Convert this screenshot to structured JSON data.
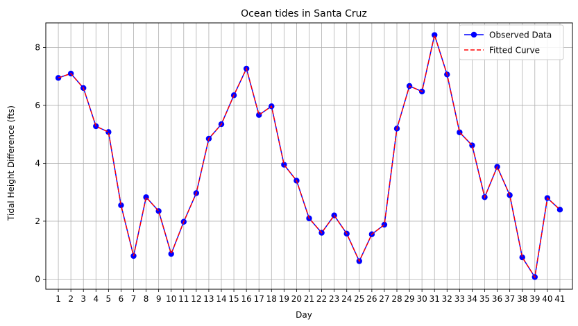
{
  "chart_data": {
    "type": "line",
    "title": "Ocean tides in Santa Cruz",
    "xlabel": "Day",
    "ylabel": "Tidal Height Difference (fts)",
    "x": [
      1,
      2,
      3,
      4,
      5,
      6,
      7,
      8,
      9,
      10,
      11,
      12,
      13,
      14,
      15,
      16,
      17,
      18,
      19,
      20,
      21,
      22,
      23,
      24,
      25,
      26,
      27,
      28,
      29,
      30,
      31,
      32,
      33,
      34,
      35,
      36,
      37,
      38,
      39,
      40,
      41
    ],
    "y_ticks": [
      0,
      2,
      4,
      6,
      8
    ],
    "xlim": [
      -0.0,
      42.0
    ],
    "ylim": [
      -0.35,
      8.85
    ],
    "grid": true,
    "legend_position": "top-right",
    "series": [
      {
        "name": "Observed Data",
        "color": "#0000ff",
        "style": "solid-with-markers",
        "values": [
          6.95,
          7.1,
          6.6,
          5.28,
          5.08,
          2.55,
          0.8,
          2.83,
          2.35,
          0.87,
          1.98,
          2.97,
          4.85,
          5.35,
          6.35,
          7.27,
          5.67,
          5.97,
          3.95,
          3.4,
          2.1,
          1.6,
          2.2,
          1.57,
          0.62,
          1.55,
          1.88,
          5.2,
          6.67,
          6.48,
          8.43,
          7.07,
          5.07,
          4.62,
          2.83,
          3.88,
          2.9,
          0.75,
          0.07,
          2.8,
          2.4
        ]
      },
      {
        "name": "Fitted Curve",
        "color": "#ff0000",
        "style": "dashed",
        "values": [
          6.95,
          7.1,
          6.6,
          5.28,
          5.08,
          2.55,
          0.8,
          2.83,
          2.35,
          0.87,
          1.98,
          2.97,
          4.85,
          5.35,
          6.35,
          7.27,
          5.67,
          5.97,
          3.95,
          3.4,
          2.1,
          1.6,
          2.2,
          1.57,
          0.62,
          1.55,
          1.88,
          5.2,
          6.67,
          6.48,
          8.43,
          7.07,
          5.07,
          4.62,
          2.83,
          3.88,
          2.9,
          0.75,
          0.07,
          2.8,
          2.4
        ]
      }
    ]
  }
}
